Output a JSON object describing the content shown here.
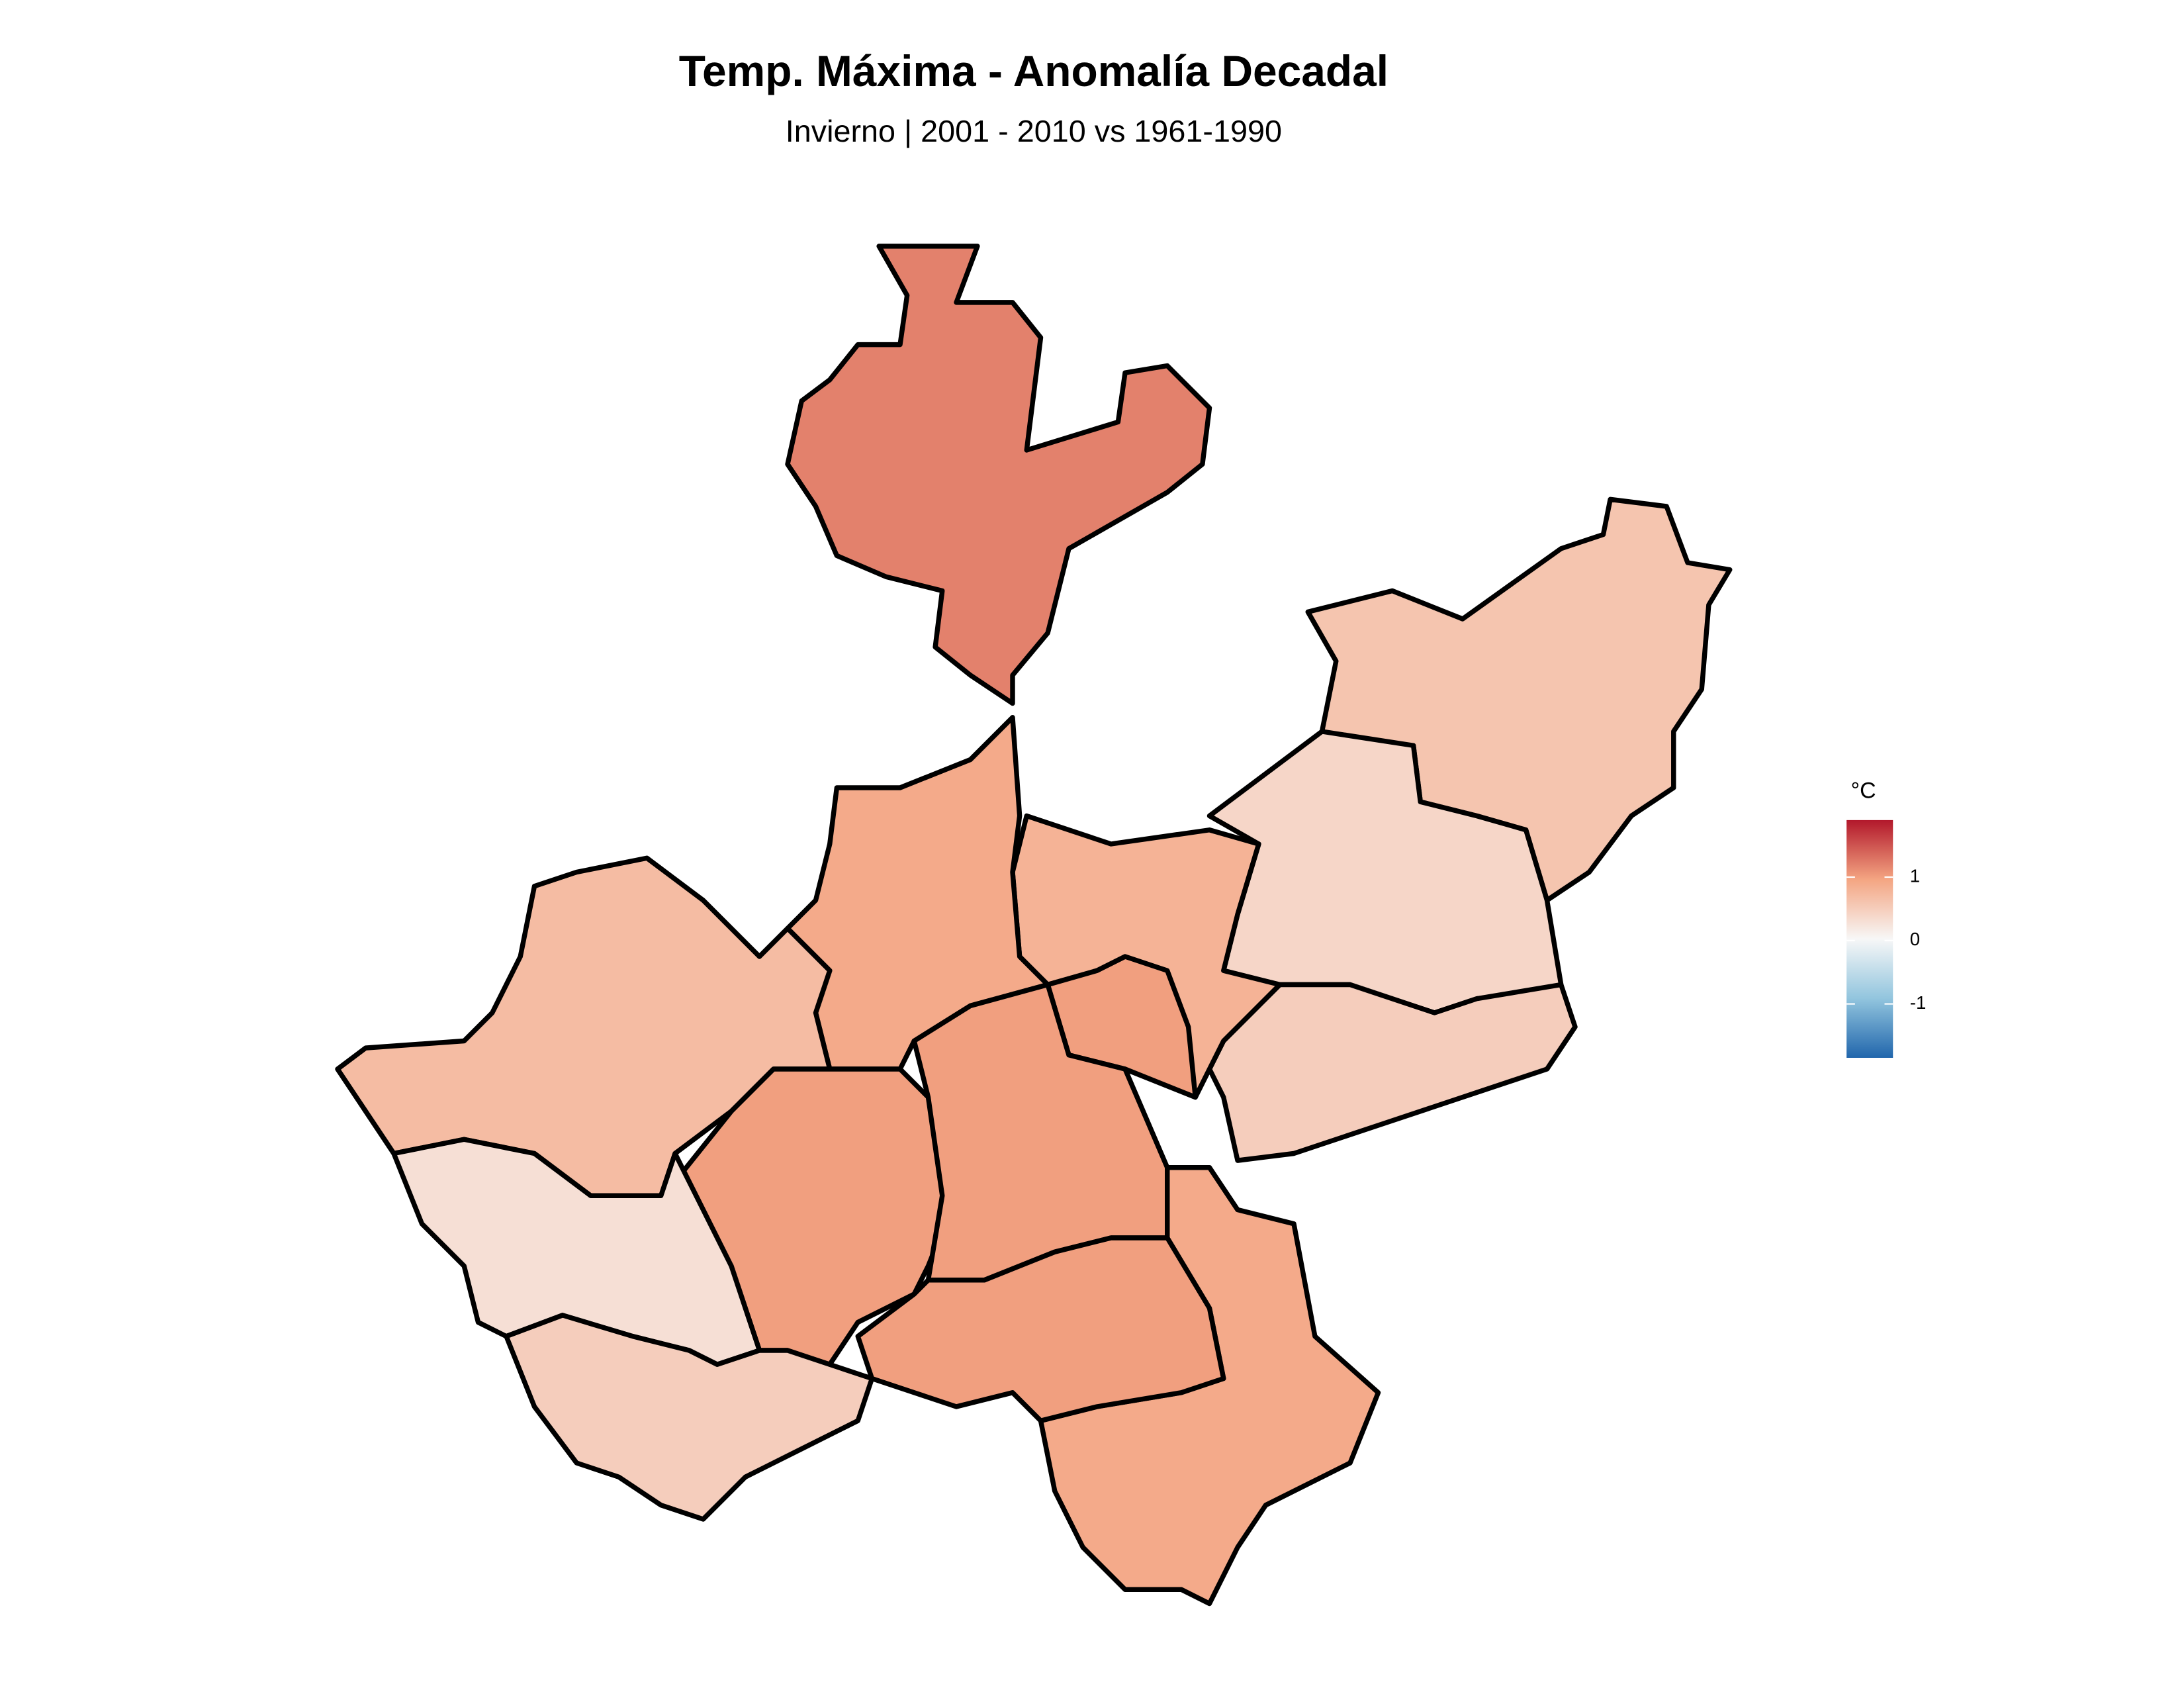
{
  "title": "Temp. Máxima - Anomalía Decadal",
  "subtitle": "Invierno | 2001 - 2010 vs 1961-1990",
  "legend": {
    "title": "°C",
    "limits": [
      -1.85,
      1.9
    ],
    "ticks": [
      -1,
      0,
      1
    ],
    "colors": [
      "#2166ac",
      "#92c5de",
      "#f7f7f7",
      "#f4a582",
      "#b2182b"
    ]
  },
  "regions": {
    "values": [
      1.2,
      0.6,
      0.4,
      0.5,
      0.8,
      0.9,
      1.0,
      0.7,
      1.0,
      1.0,
      0.3,
      0.9,
      1.0,
      0.5
    ]
  }
}
